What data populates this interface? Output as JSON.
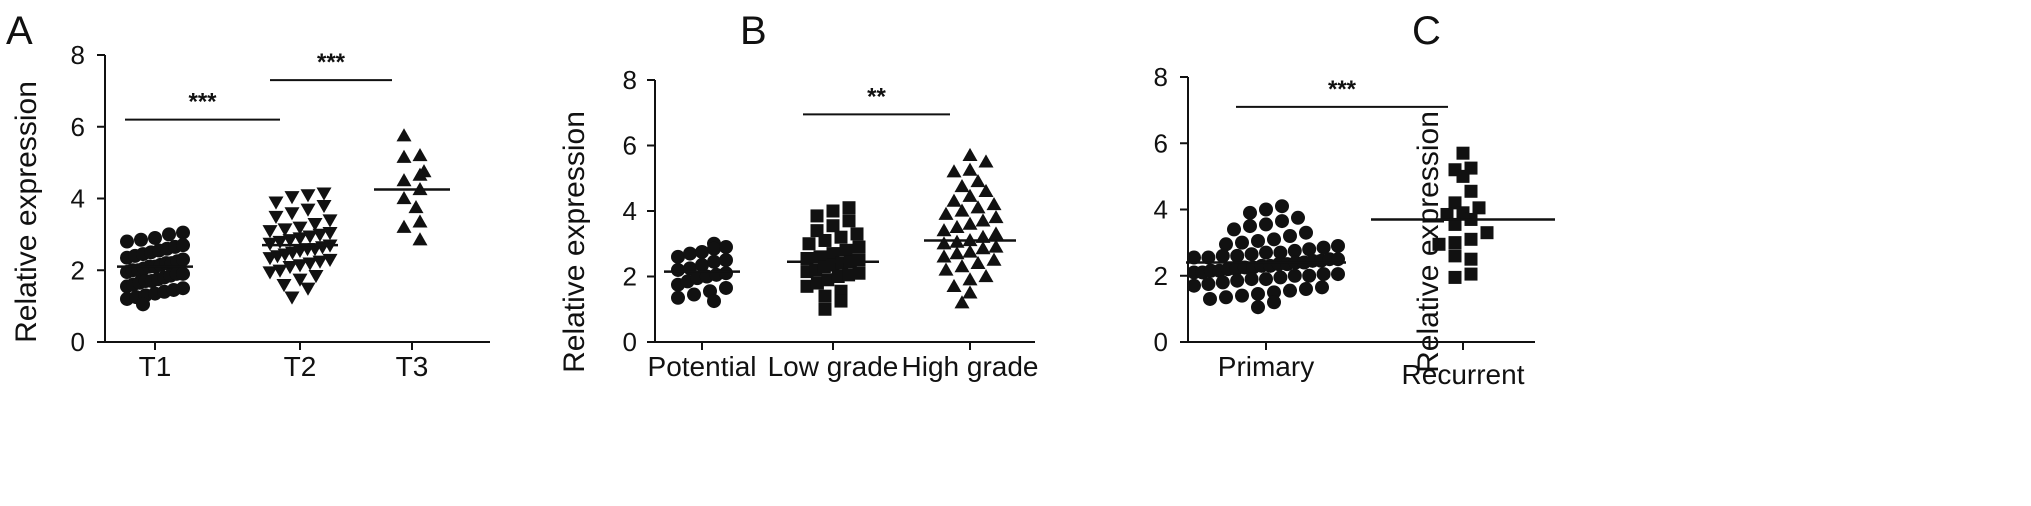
{
  "figure": {
    "background": "#ffffff",
    "ink": "#111111"
  },
  "chart_data": [
    {
      "panel": "A",
      "type": "scatter",
      "ylabel": "Relative expression",
      "ylim": [
        0,
        8
      ],
      "yticks": [
        "0",
        "2",
        "4",
        "6",
        "8"
      ],
      "categories": [
        "T1",
        "T2",
        "T3"
      ],
      "marker": "circle",
      "groups": [
        {
          "category": "T1",
          "marker": "circle",
          "mean": 2.1,
          "values": [
            1.05,
            1.2,
            1.25,
            1.3,
            1.35,
            1.4,
            1.45,
            1.5,
            1.55,
            1.6,
            1.65,
            1.7,
            1.7,
            1.75,
            1.8,
            1.85,
            1.9,
            1.9,
            1.95,
            2.0,
            2.0,
            2.05,
            2.1,
            2.1,
            2.15,
            2.2,
            2.2,
            2.25,
            2.3,
            2.35,
            2.4,
            2.45,
            2.5,
            2.55,
            2.6,
            2.65,
            2.7,
            2.8,
            2.85,
            2.9,
            3.0,
            3.05
          ]
        },
        {
          "category": "T2",
          "marker": "triangle-down",
          "mean": 2.7,
          "values": [
            1.25,
            1.5,
            1.6,
            1.75,
            1.85,
            1.95,
            2.0,
            2.1,
            2.15,
            2.2,
            2.25,
            2.3,
            2.35,
            2.4,
            2.45,
            2.5,
            2.55,
            2.6,
            2.6,
            2.65,
            2.7,
            2.75,
            2.8,
            2.85,
            2.9,
            2.95,
            3.0,
            3.05,
            3.1,
            3.15,
            3.2,
            3.3,
            3.4,
            3.5,
            3.6,
            3.7,
            3.8,
            3.9,
            4.05,
            4.1,
            4.15
          ]
        },
        {
          "category": "T3",
          "marker": "triangle-up",
          "mean": 4.25,
          "values": [
            2.85,
            3.2,
            3.35,
            3.75,
            4.0,
            4.25,
            4.5,
            4.65,
            4.75,
            5.15,
            5.2,
            5.75
          ]
        }
      ],
      "significance": [
        {
          "from": 0,
          "to": 1,
          "y": 6.2,
          "label": "***"
        },
        {
          "from": 1,
          "to": 2,
          "y": 7.3,
          "label": "***"
        }
      ]
    },
    {
      "panel": "B",
      "type": "scatter",
      "ylabel": "Relative expression",
      "ylim": [
        0,
        8
      ],
      "yticks": [
        "0",
        "2",
        "4",
        "6",
        "8"
      ],
      "categories": [
        "Potential",
        "Low grade",
        "High grade"
      ],
      "groups": [
        {
          "category": "Potential",
          "marker": "circle",
          "mean": 2.15,
          "values": [
            1.25,
            1.35,
            1.45,
            1.55,
            1.65,
            1.75,
            1.85,
            1.95,
            2.0,
            2.05,
            2.1,
            2.2,
            2.25,
            2.35,
            2.45,
            2.5,
            2.6,
            2.7,
            2.75,
            2.85,
            2.9,
            3.0
          ]
        },
        {
          "category": "Low grade",
          "marker": "square",
          "mean": 2.45,
          "values": [
            1.0,
            1.25,
            1.4,
            1.55,
            1.7,
            1.8,
            1.9,
            2.0,
            2.05,
            2.1,
            2.15,
            2.2,
            2.3,
            2.35,
            2.4,
            2.45,
            2.5,
            2.55,
            2.6,
            2.7,
            2.8,
            2.9,
            3.0,
            3.1,
            3.2,
            3.3,
            3.4,
            3.55,
            3.7,
            3.85,
            4.0,
            4.1
          ]
        },
        {
          "category": "High grade",
          "marker": "triangle-up",
          "mean": 3.1,
          "values": [
            1.2,
            1.5,
            1.7,
            1.9,
            2.0,
            2.2,
            2.3,
            2.4,
            2.5,
            2.6,
            2.7,
            2.75,
            2.85,
            2.9,
            3.0,
            3.05,
            3.1,
            3.2,
            3.3,
            3.4,
            3.5,
            3.6,
            3.7,
            3.8,
            3.9,
            4.0,
            4.1,
            4.2,
            4.3,
            4.45,
            4.6,
            4.75,
            4.9,
            5.2,
            5.25,
            5.5,
            5.7
          ]
        }
      ],
      "significance": [
        {
          "from": 1,
          "to": 2,
          "y": 6.95,
          "label": "**"
        }
      ]
    },
    {
      "panel": "C",
      "type": "scatter",
      "ylabel": "Relative expression",
      "ylim": [
        0,
        8
      ],
      "yticks": [
        "0",
        "2",
        "4",
        "6",
        "8"
      ],
      "categories": [
        "Primary",
        "Recurrent"
      ],
      "groups": [
        {
          "category": "Primary",
          "marker": "circle",
          "mean": 2.4,
          "values": [
            1.05,
            1.2,
            1.3,
            1.35,
            1.4,
            1.45,
            1.5,
            1.55,
            1.6,
            1.65,
            1.7,
            1.75,
            1.8,
            1.85,
            1.9,
            1.9,
            1.95,
            2.0,
            2.0,
            2.05,
            2.05,
            2.1,
            2.1,
            2.15,
            2.15,
            2.2,
            2.2,
            2.25,
            2.25,
            2.3,
            2.3,
            2.35,
            2.35,
            2.4,
            2.4,
            2.45,
            2.45,
            2.5,
            2.5,
            2.55,
            2.55,
            2.6,
            2.6,
            2.65,
            2.7,
            2.7,
            2.75,
            2.8,
            2.85,
            2.9,
            2.95,
            3.0,
            3.05,
            3.1,
            3.2,
            3.3,
            3.4,
            3.5,
            3.55,
            3.65,
            3.75,
            3.9,
            4.0,
            4.1
          ]
        },
        {
          "category": "Recurrent",
          "marker": "square",
          "mean": 3.7,
          "values": [
            1.95,
            2.05,
            2.5,
            2.6,
            2.95,
            3.0,
            3.1,
            3.3,
            3.55,
            3.7,
            3.85,
            3.9,
            4.05,
            4.2,
            4.55,
            5.0,
            5.2,
            5.25,
            5.7
          ]
        }
      ],
      "significance": [
        {
          "from": 0,
          "to": 1,
          "y": 7.1,
          "label": "***"
        }
      ]
    }
  ]
}
